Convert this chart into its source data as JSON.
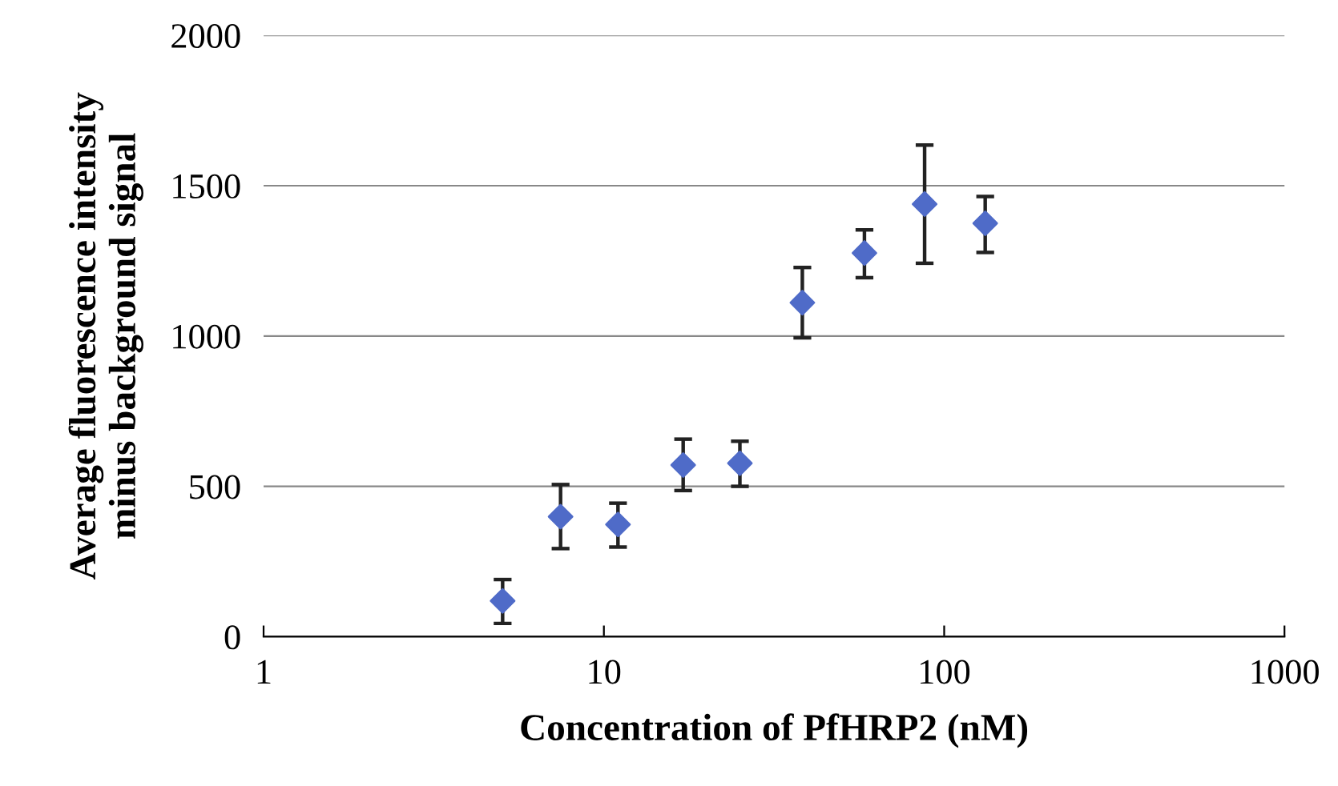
{
  "chart_data": {
    "type": "scatter",
    "xlabel": "Concentration of PfHRP2 (nM)",
    "ylabel": "Average fluorescence intensity\nminus background signal",
    "x": [
      5.04,
      7.46,
      11.0,
      17.1,
      25.1,
      38.3,
      58.3,
      87.6,
      132
    ],
    "values": [
      119,
      399,
      373,
      571,
      577,
      1111,
      1276,
      1439,
      1375
    ],
    "errors": [
      [
        44,
        190
      ],
      [
        293,
        506
      ],
      [
        298,
        444
      ],
      [
        486,
        657
      ],
      [
        500,
        650
      ],
      [
        994,
        1228
      ],
      [
        1194,
        1353
      ],
      [
        1242,
        1635
      ],
      [
        1278,
        1464
      ]
    ],
    "color": "#4f6bc8",
    "marker": "diamond",
    "log": "x",
    "xlim": [
      1,
      1000
    ],
    "xticks": [
      1,
      10,
      100,
      1000
    ],
    "ylim": [
      0,
      2000
    ],
    "yticks": [
      0,
      500,
      1000,
      1500,
      2000
    ],
    "grid": "y"
  }
}
